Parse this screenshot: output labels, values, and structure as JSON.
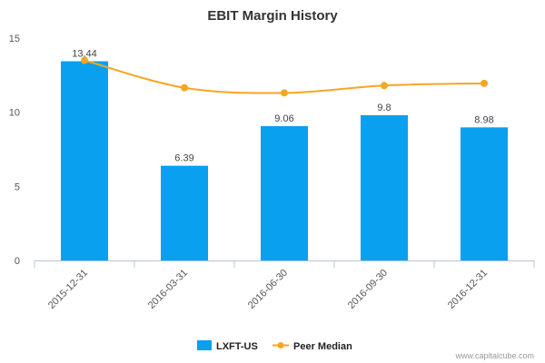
{
  "chart_data": {
    "type": "bar",
    "title": "EBIT Margin History",
    "categories": [
      "2015-12-31",
      "2016-03-31",
      "2016-06-30",
      "2016-09-30",
      "2016-12-31"
    ],
    "series": [
      {
        "name": "LXFT-US",
        "type": "bar",
        "color": "#0aa0f0",
        "values": [
          13.44,
          6.39,
          9.06,
          9.8,
          8.98
        ],
        "data_labels": [
          "13.44",
          "6.39",
          "9.06",
          "9.8",
          "8.98"
        ]
      },
      {
        "name": "Peer Median",
        "type": "line",
        "color": "#f5a623",
        "values": [
          13.5,
          11.65,
          11.3,
          11.8,
          11.95
        ]
      }
    ],
    "ylim": [
      0,
      15
    ],
    "yticks": [
      0,
      5,
      10,
      15
    ],
    "xlabel": "",
    "ylabel": "",
    "grid": false,
    "legend_position": "bottom-center"
  },
  "credit": "www.capitalcube.com"
}
